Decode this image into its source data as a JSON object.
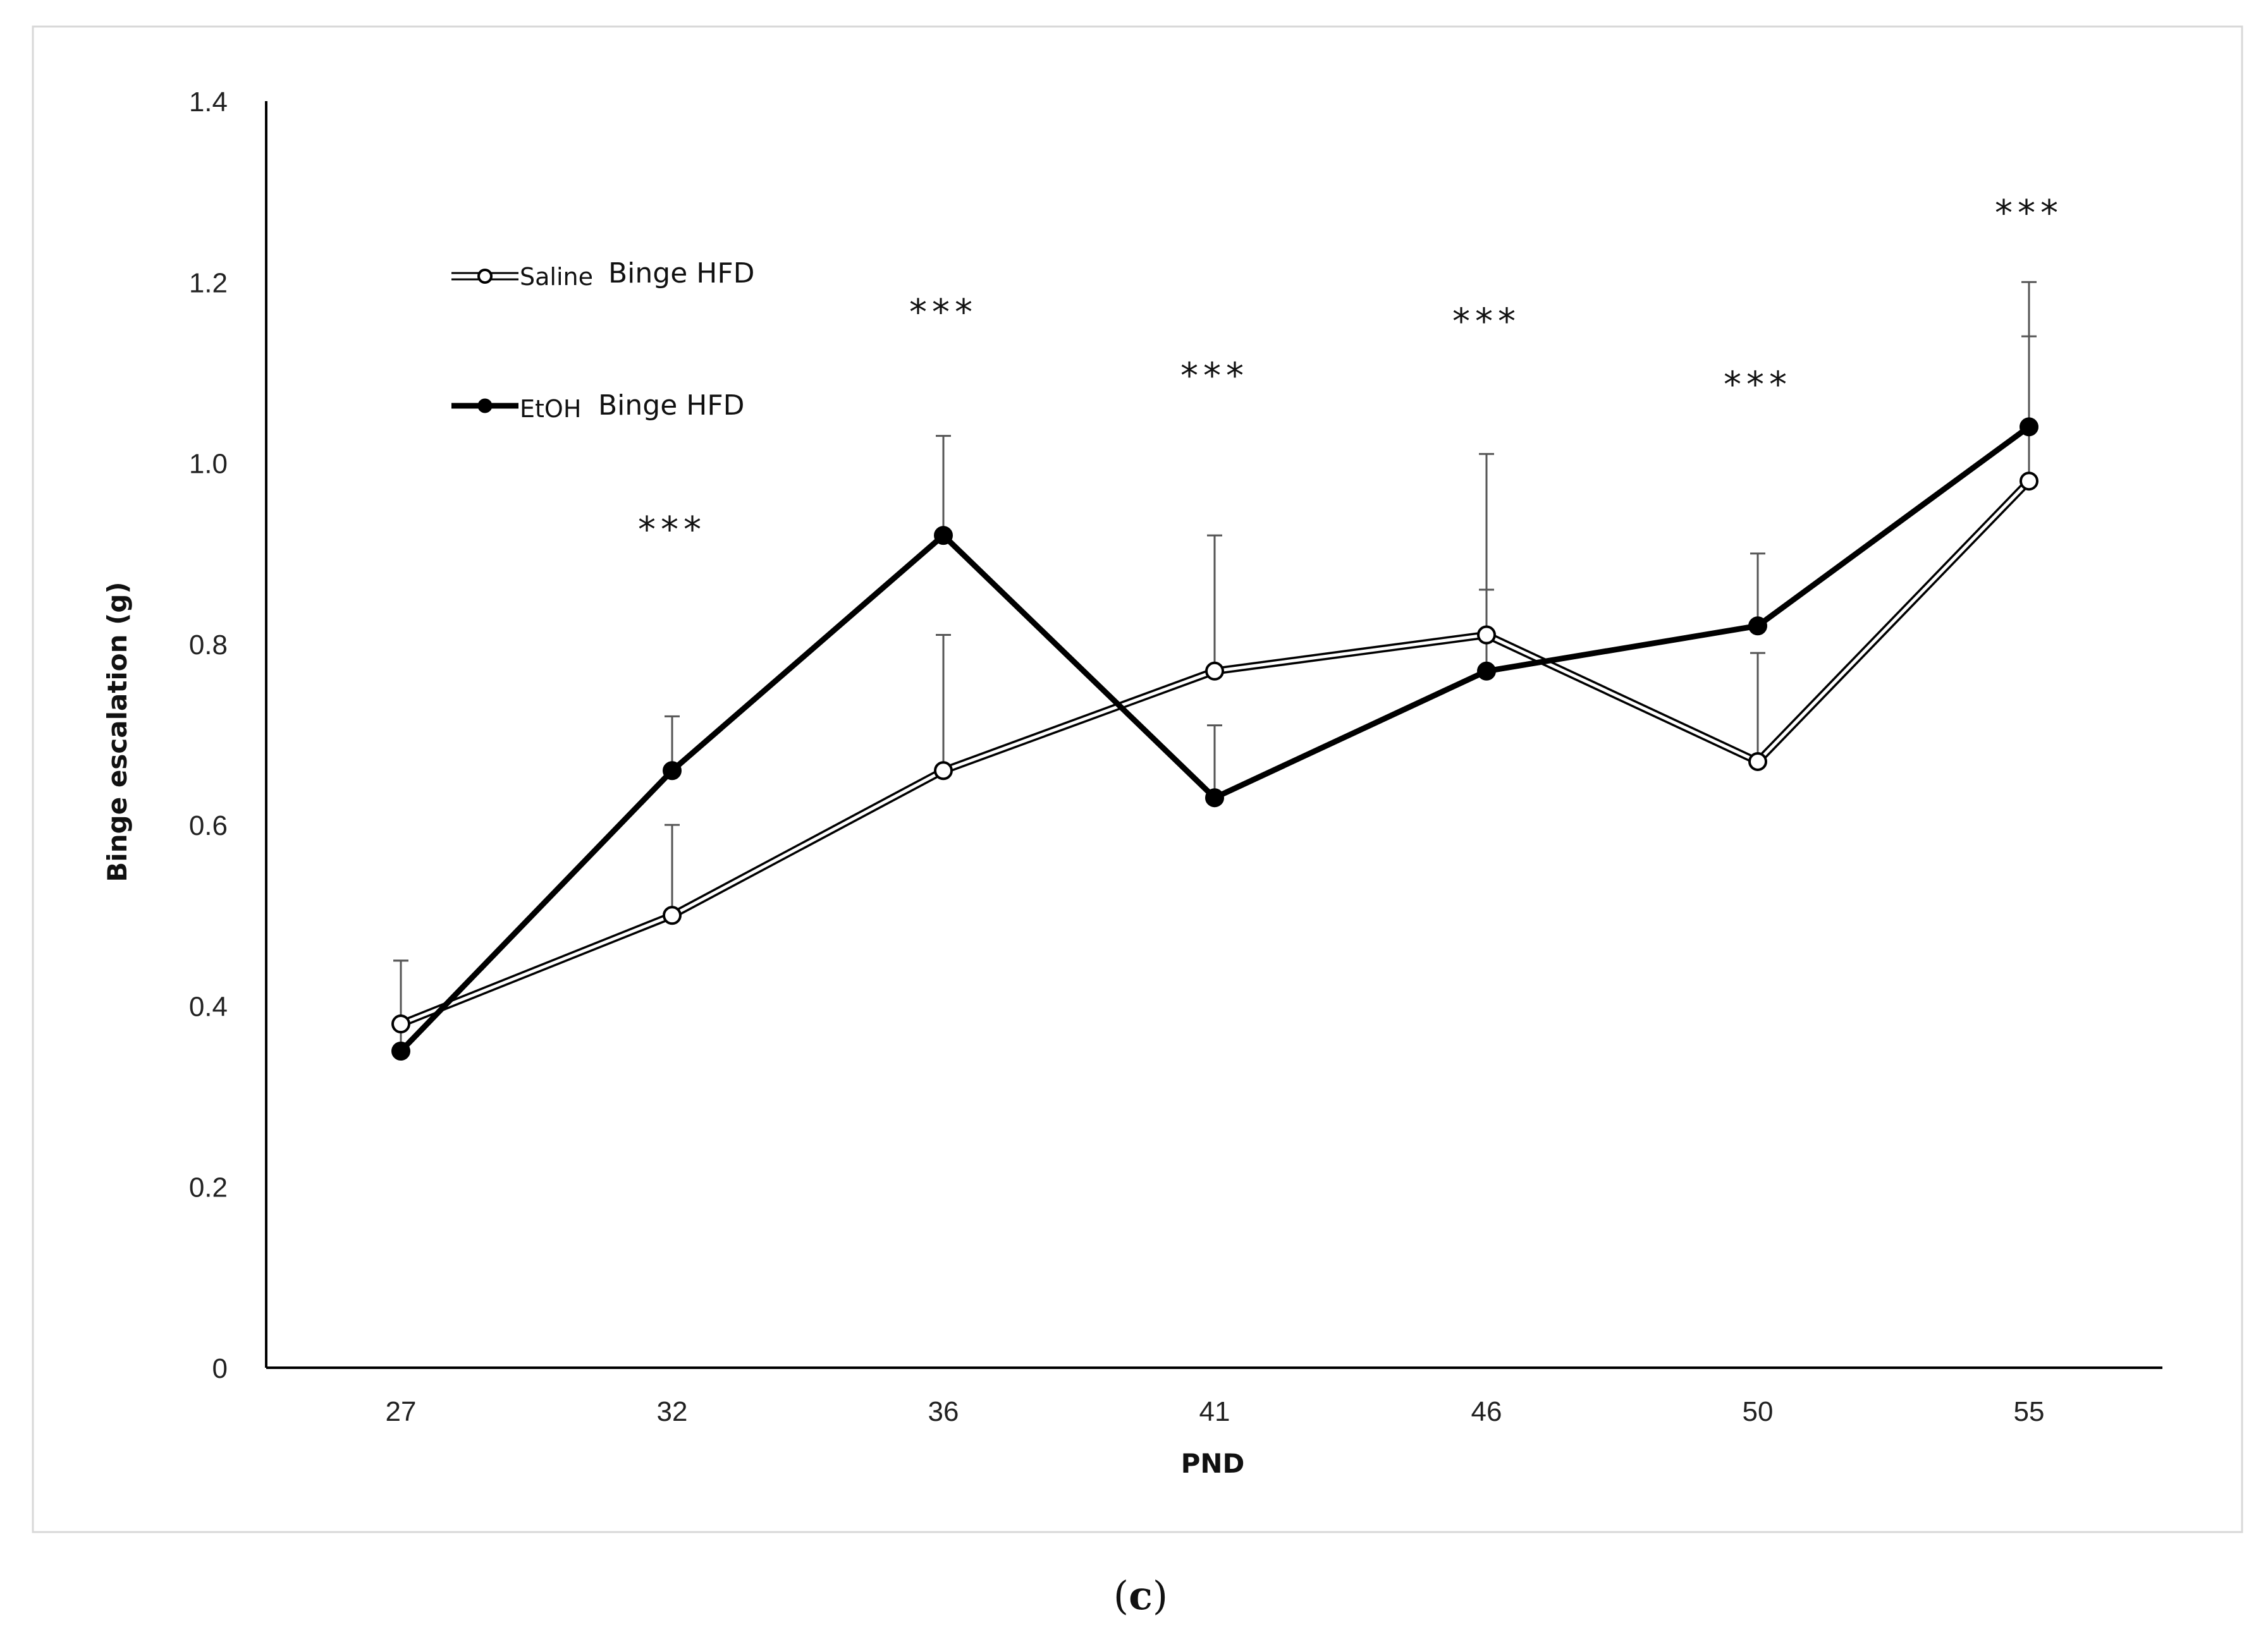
{
  "panel_label_prefix": "(",
  "panel_label_letter": "c",
  "panel_label_suffix": ")",
  "chart_data": {
    "type": "line",
    "xlabel": "PND",
    "ylabel": "Binge escalation (g)",
    "categories": [
      "27",
      "32",
      "36",
      "41",
      "46",
      "50",
      "55"
    ],
    "ylim": [
      0,
      1.4
    ],
    "yticks": [
      "0",
      "0.2",
      "0.4",
      "0.6",
      "0.8",
      "1.0",
      "1.2",
      "1.4"
    ],
    "grid": false,
    "legend_position": "top-left",
    "series": [
      {
        "name_prefix": "Saline",
        "name_suffix": "Binge HFD",
        "marker": "open-circle",
        "line_style": "double-thin",
        "color": "#000000",
        "values": [
          0.38,
          0.5,
          0.66,
          0.77,
          0.81,
          0.67,
          0.98
        ],
        "error": [
          0.07,
          0.1,
          0.15,
          0.15,
          0.2,
          0.12,
          0.16
        ]
      },
      {
        "name_prefix": "EtOH",
        "name_suffix": "Binge HFD",
        "marker": "filled-circle",
        "line_style": "thick",
        "color": "#000000",
        "values": [
          0.35,
          0.66,
          0.92,
          0.63,
          0.77,
          0.82,
          1.04
        ],
        "error": [
          0.1,
          0.06,
          0.11,
          0.08,
          0.09,
          0.08,
          0.16
        ]
      }
    ],
    "annotations": [
      {
        "x": "32",
        "text": "***",
        "y": 0.93
      },
      {
        "x": "36",
        "text": "***",
        "y": 1.17
      },
      {
        "x": "41",
        "text": "***",
        "y": 1.1
      },
      {
        "x": "46",
        "text": "***",
        "y": 1.16
      },
      {
        "x": "50",
        "text": "***",
        "y": 1.09
      },
      {
        "x": "55",
        "text": "***",
        "y": 1.28
      }
    ]
  }
}
